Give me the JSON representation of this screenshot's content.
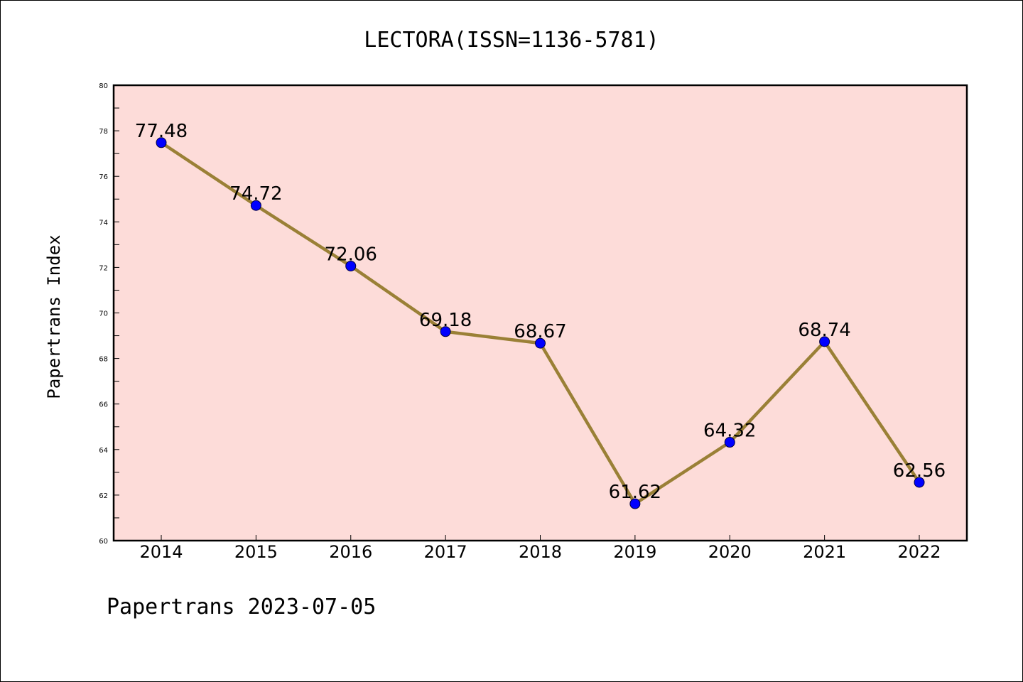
{
  "chart_data": {
    "type": "line",
    "title": "LECTORA(ISSN=1136-5781)",
    "ylabel": "Papertrans Index",
    "xlabel": "",
    "categories": [
      "2014",
      "2015",
      "2016",
      "2017",
      "2018",
      "2019",
      "2020",
      "2021",
      "2022"
    ],
    "values": [
      77.48,
      74.72,
      72.06,
      69.18,
      68.67,
      61.62,
      64.32,
      68.74,
      62.56
    ],
    "data_labels": [
      "77.48",
      "74.72",
      "72.06",
      "69.18",
      "68.67",
      "61.62",
      "64.32",
      "68.74",
      "62.56"
    ],
    "ylim": [
      60,
      80
    ],
    "yticks": [
      "60",
      "62",
      "64",
      "66",
      "68",
      "70",
      "72",
      "74",
      "76",
      "78",
      "80"
    ],
    "grid": false,
    "legend": "none",
    "colors": {
      "plot_background": "#fddcd9",
      "line": "#9a8036",
      "marker": "#0000ff",
      "axes": "#000000"
    }
  },
  "footer": "Papertrans 2023-07-05"
}
